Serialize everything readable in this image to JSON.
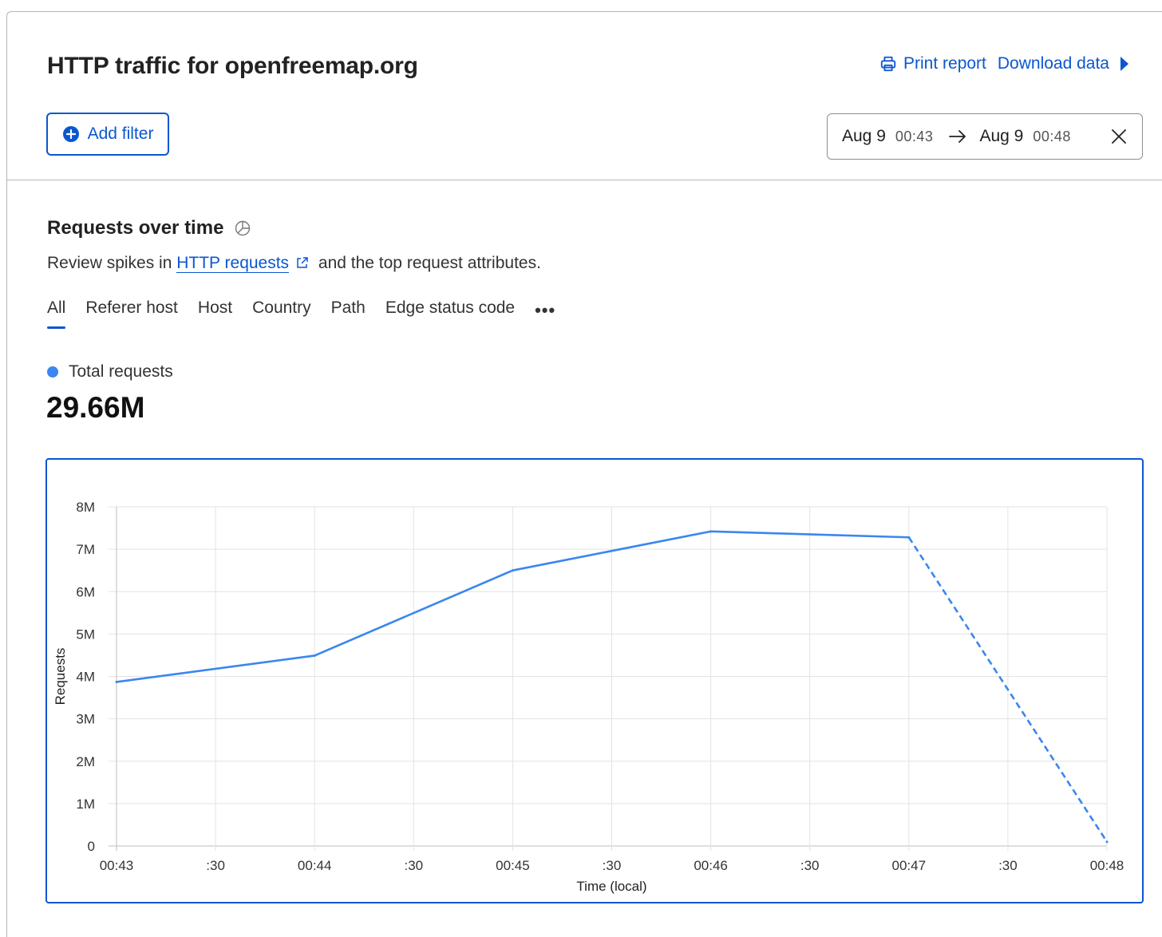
{
  "header": {
    "title": "HTTP traffic for openfreemap.org",
    "print_label": "Print report",
    "download_label": "Download data"
  },
  "filter": {
    "add_label": "Add filter"
  },
  "date_range": {
    "start_date": "Aug 9",
    "start_time": "00:43",
    "end_date": "Aug 9",
    "end_time": "00:48"
  },
  "section": {
    "title": "Requests over time",
    "desc_before": "Review spikes in ",
    "desc_link": "HTTP requests",
    "desc_after": " and the top request attributes."
  },
  "tabs": [
    {
      "label": "All",
      "active": true
    },
    {
      "label": "Referer host"
    },
    {
      "label": "Host"
    },
    {
      "label": "Country"
    },
    {
      "label": "Path"
    },
    {
      "label": "Edge status code"
    }
  ],
  "tabs_more": "•••",
  "legend": {
    "label": "Total requests",
    "color": "#3b86f0"
  },
  "total": "29.66M",
  "colors": {
    "accent": "#0b57d0",
    "series": "#3b86f0"
  },
  "chart_data": {
    "type": "line",
    "xlabel": "Time (local)",
    "ylabel": "Requests",
    "ylim": [
      0,
      8000000
    ],
    "yticks": [
      0,
      1000000,
      2000000,
      3000000,
      4000000,
      5000000,
      6000000,
      7000000,
      8000000
    ],
    "ytick_labels": [
      "0",
      "1M",
      "2M",
      "3M",
      "4M",
      "5M",
      "6M",
      "7M",
      "8M"
    ],
    "xtick_labels": [
      "00:43",
      ":30",
      "00:44",
      ":30",
      "00:45",
      ":30",
      "00:46",
      ":30",
      "00:47",
      ":30",
      "00:48"
    ],
    "grid": true,
    "categories": [
      "00:43",
      "00:44",
      "00:45",
      "00:46",
      "00:47",
      "00:48"
    ],
    "series": [
      {
        "name": "Total requests",
        "values": [
          3870000,
          4490000,
          6500000,
          7420000,
          7280000,
          100000
        ],
        "dashed_last_segment": true
      }
    ]
  }
}
